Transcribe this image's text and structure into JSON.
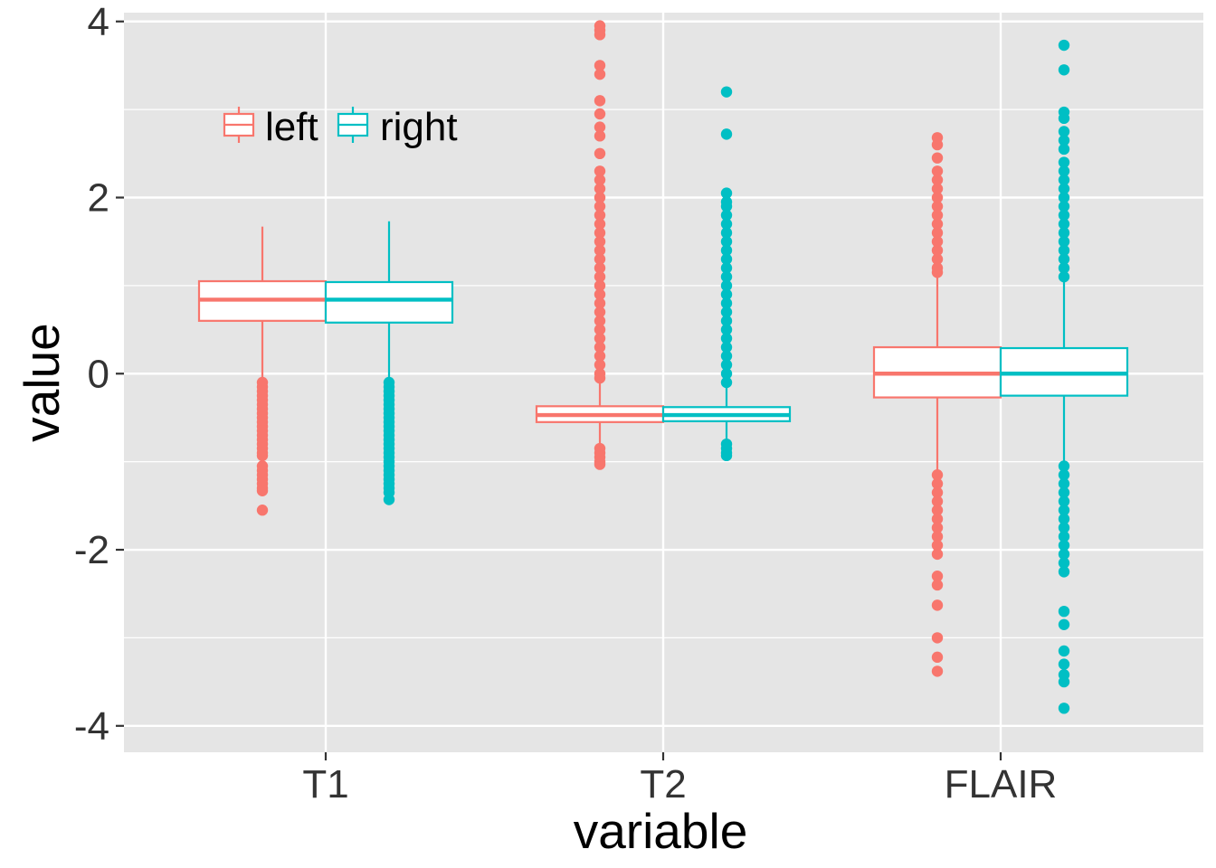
{
  "chart_data": {
    "type": "boxplot",
    "xlabel": "variable",
    "ylabel": "value",
    "categories": [
      "T1",
      "T2",
      "FLAIR"
    ],
    "ylim": [
      -4.3,
      4.1
    ],
    "yticks": [
      -4,
      -2,
      0,
      2,
      4
    ],
    "ytick_labels": [
      "-4",
      "-2",
      "0",
      "2",
      "4"
    ],
    "grid": true,
    "legend_position": "top-left (inside plot)",
    "series": [
      {
        "name": "left",
        "color": "#F8766D",
        "boxes": [
          {
            "category": "T1",
            "q1": 0.6,
            "median": 0.84,
            "q3": 1.05,
            "whisker_low": -0.08,
            "whisker_high": 1.67,
            "outliers": [
              -0.1,
              -0.15,
              -0.2,
              -0.25,
              -0.3,
              -0.35,
              -0.4,
              -0.45,
              -0.5,
              -0.55,
              -0.6,
              -0.65,
              -0.7,
              -0.75,
              -0.8,
              -0.85,
              -0.9,
              -0.93,
              -1.05,
              -1.1,
              -1.15,
              -1.2,
              -1.25,
              -1.3,
              -1.33,
              -1.55
            ]
          },
          {
            "category": "T2",
            "q1": -0.55,
            "median": -0.47,
            "q3": -0.37,
            "whisker_low": -0.8,
            "whisker_high": -0.08,
            "outliers": [
              -0.85,
              -0.9,
              -0.95,
              -1.0,
              -1.03,
              -0.05,
              0.0,
              0.1,
              0.2,
              0.3,
              0.4,
              0.5,
              0.6,
              0.7,
              0.8,
              0.9,
              1.0,
              1.1,
              1.2,
              1.3,
              1.4,
              1.5,
              1.6,
              1.7,
              1.8,
              1.9,
              2.0,
              2.1,
              2.2,
              2.3,
              2.5,
              2.7,
              2.8,
              2.95,
              3.1,
              3.4,
              3.5,
              3.85,
              3.9,
              3.95
            ]
          },
          {
            "category": "FLAIR",
            "q1": -0.27,
            "median": 0.0,
            "q3": 0.3,
            "whisker_low": -1.1,
            "whisker_high": 1.1,
            "outliers": [
              1.15,
              1.2,
              1.3,
              1.4,
              1.5,
              1.6,
              1.7,
              1.8,
              1.9,
              2.0,
              2.1,
              2.2,
              2.3,
              2.45,
              2.6,
              2.68,
              -1.15,
              -1.25,
              -1.35,
              -1.45,
              -1.55,
              -1.65,
              -1.75,
              -1.85,
              -1.95,
              -2.05,
              -2.3,
              -2.4,
              -2.63,
              -3.0,
              -3.22,
              -3.38
            ]
          }
        ]
      },
      {
        "name": "right",
        "color": "#00BFC4",
        "boxes": [
          {
            "category": "T1",
            "q1": 0.58,
            "median": 0.84,
            "q3": 1.04,
            "whisker_low": -0.08,
            "whisker_high": 1.73,
            "outliers": [
              -0.1,
              -0.15,
              -0.2,
              -0.25,
              -0.3,
              -0.35,
              -0.4,
              -0.45,
              -0.5,
              -0.55,
              -0.6,
              -0.65,
              -0.7,
              -0.75,
              -0.8,
              -0.85,
              -0.9,
              -0.95,
              -1.0,
              -1.05,
              -1.1,
              -1.15,
              -1.2,
              -1.25,
              -1.3,
              -1.35,
              -1.43
            ]
          },
          {
            "category": "T2",
            "q1": -0.54,
            "median": -0.47,
            "q3": -0.38,
            "whisker_low": -0.75,
            "whisker_high": -0.15,
            "outliers": [
              -0.8,
              -0.85,
              -0.9,
              -0.93,
              -0.1,
              0.0,
              0.1,
              0.2,
              0.3,
              0.4,
              0.5,
              0.6,
              0.7,
              0.8,
              0.9,
              1.0,
              1.1,
              1.2,
              1.3,
              1.4,
              1.5,
              1.6,
              1.7,
              1.8,
              1.9,
              1.95,
              2.05,
              2.72,
              3.2
            ]
          },
          {
            "category": "FLAIR",
            "q1": -0.25,
            "median": 0.0,
            "q3": 0.29,
            "whisker_low": -1.03,
            "whisker_high": 1.07,
            "outliers": [
              1.1,
              1.2,
              1.3,
              1.4,
              1.5,
              1.6,
              1.7,
              1.8,
              1.9,
              2.0,
              2.1,
              2.2,
              2.3,
              2.4,
              2.55,
              2.65,
              2.75,
              2.9,
              2.97,
              3.45,
              3.73,
              -1.05,
              -1.15,
              -1.25,
              -1.35,
              -1.45,
              -1.55,
              -1.65,
              -1.75,
              -1.85,
              -1.95,
              -2.05,
              -2.15,
              -2.25,
              -2.7,
              -2.85,
              -3.15,
              -3.3,
              -3.42,
              -3.5,
              -3.8
            ]
          }
        ]
      }
    ]
  },
  "colors": {
    "panel_background": "#E5E5E5",
    "grid_line": "#FFFFFF",
    "left": "#F8766D",
    "right": "#00BFC4"
  }
}
